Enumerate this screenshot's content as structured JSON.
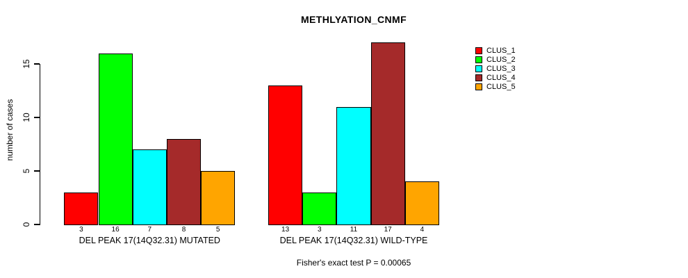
{
  "chart_data": {
    "type": "bar",
    "title": "METHLYATION_CNMF",
    "ylabel": "number of cases",
    "xlabel": "",
    "annotation": "Fisher's exact test P = 0.00065",
    "categories": [
      "DEL PEAK 17(14Q32.31) MUTATED",
      "DEL PEAK 17(14Q32.31) WILD-TYPE"
    ],
    "series": [
      {
        "name": "CLUS_1",
        "color": "#FF0000",
        "values": [
          3,
          13
        ]
      },
      {
        "name": "CLUS_2",
        "color": "#00FF00",
        "values": [
          16,
          3
        ]
      },
      {
        "name": "CLUS_3",
        "color": "#00FFFF",
        "values": [
          7,
          11
        ]
      },
      {
        "name": "CLUS_4",
        "color": "#A52A2A",
        "values": [
          8,
          17
        ]
      },
      {
        "name": "CLUS_5",
        "color": "#FFA500",
        "values": [
          5,
          4
        ]
      }
    ],
    "bar_value_labels": true,
    "yticks": [
      0,
      5,
      10,
      15
    ],
    "ylim": [
      0,
      15
    ],
    "grid": false,
    "legend_position": "right",
    "background": "#FFFFFF",
    "bar_border_color": "#000000"
  }
}
